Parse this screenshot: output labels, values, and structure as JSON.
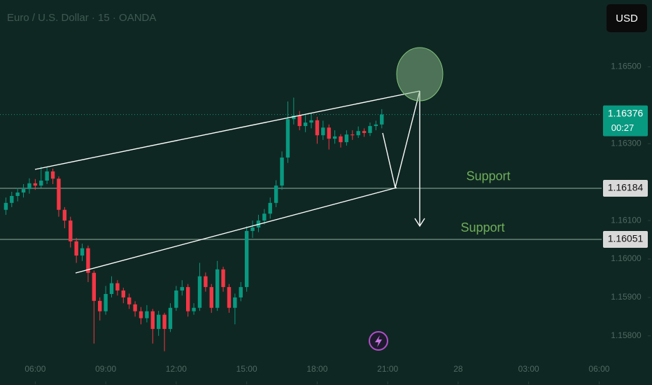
{
  "chart_data": {
    "type": "candlestick",
    "title": "Euro / U.S. Dollar · 15 · OANDA",
    "currency": "USD",
    "countdown": "00:27",
    "up_color": "#089981",
    "down_color": "#f23645",
    "open": [
      1.16128,
      1.16146,
      1.16164,
      1.16173,
      1.16182,
      1.16197,
      1.16191,
      1.16204,
      1.16228,
      1.16209,
      1.16128,
      1.161,
      1.16046,
      1.16009,
      1.16028,
      1.15964,
      1.15891,
      1.15864,
      1.15909,
      1.15937,
      1.15918,
      1.159,
      1.15882,
      1.15864,
      1.15846,
      1.15864,
      1.15818,
      1.15855,
      1.15818,
      1.15873,
      1.15918,
      1.15927,
      1.15864,
      1.15873,
      1.15955,
      1.15927,
      1.15873,
      1.15973,
      1.15927,
      1.15873,
      1.159,
      1.15927,
      1.16073,
      1.16082,
      1.161,
      1.16118,
      1.16146,
      1.16191,
      1.16264,
      1.16364,
      1.16373,
      1.16346,
      1.16355,
      1.16361,
      1.16322,
      1.16342,
      1.16313,
      1.16319,
      1.16304,
      1.16324,
      1.16322,
      1.16333,
      1.16328,
      1.16346,
      1.1635
    ],
    "high": [
      1.1616,
      1.16175,
      1.16185,
      1.16195,
      1.1621,
      1.16208,
      1.1624,
      1.1624,
      1.16235,
      1.16215,
      1.16135,
      1.1611,
      1.16055,
      1.1604,
      1.16035,
      1.1597,
      1.159,
      1.1593,
      1.15955,
      1.15945,
      1.15925,
      1.1591,
      1.1589,
      1.15875,
      1.1588,
      1.1587,
      1.15865,
      1.1586,
      1.15885,
      1.1593,
      1.15945,
      1.15935,
      1.15885,
      1.1599,
      1.15965,
      1.15935,
      1.15995,
      1.1598,
      1.15935,
      1.1591,
      1.1594,
      1.16085,
      1.161,
      1.16115,
      1.1613,
      1.1616,
      1.16205,
      1.1628,
      1.1641,
      1.1642,
      1.16385,
      1.16375,
      1.1638,
      1.1637,
      1.1636,
      1.1635,
      1.16335,
      1.16325,
      1.16335,
      1.16335,
      1.16345,
      1.1634,
      1.16355,
      1.1636,
      1.1639
    ],
    "low": [
      1.16115,
      1.16135,
      1.1615,
      1.1616,
      1.1617,
      1.1618,
      1.16185,
      1.16195,
      1.16195,
      1.1611,
      1.1608,
      1.1603,
      1.1599,
      1.15995,
      1.1594,
      1.1578,
      1.1584,
      1.15855,
      1.159,
      1.15905,
      1.15885,
      1.1587,
      1.1585,
      1.1583,
      1.15835,
      1.1578,
      1.158,
      1.1576,
      1.1581,
      1.15865,
      1.15905,
      1.1585,
      1.15855,
      1.15865,
      1.15915,
      1.1586,
      1.15865,
      1.15915,
      1.1586,
      1.1583,
      1.1589,
      1.15915,
      1.16055,
      1.1607,
      1.1609,
      1.16105,
      1.16135,
      1.1618,
      1.1625,
      1.1635,
      1.16335,
      1.1633,
      1.1634,
      1.163,
      1.1631,
      1.16285,
      1.163,
      1.1629,
      1.16295,
      1.1631,
      1.16315,
      1.16318,
      1.1632,
      1.16335,
      1.1634
    ],
    "close": [
      1.16146,
      1.16164,
      1.16173,
      1.16182,
      1.16197,
      1.16191,
      1.16204,
      1.16228,
      1.16209,
      1.16128,
      1.161,
      1.16046,
      1.16009,
      1.16028,
      1.15964,
      1.15891,
      1.15864,
      1.15909,
      1.15937,
      1.15918,
      1.159,
      1.15882,
      1.15864,
      1.15846,
      1.15864,
      1.15818,
      1.15855,
      1.15818,
      1.15873,
      1.15918,
      1.15927,
      1.15864,
      1.15873,
      1.15955,
      1.15927,
      1.15873,
      1.15973,
      1.15927,
      1.15873,
      1.159,
      1.15927,
      1.16073,
      1.16082,
      1.161,
      1.16118,
      1.16146,
      1.16191,
      1.16264,
      1.16364,
      1.16373,
      1.16346,
      1.16355,
      1.16361,
      1.16322,
      1.16342,
      1.16313,
      1.16319,
      1.16304,
      1.16324,
      1.16322,
      1.16333,
      1.16328,
      1.16346,
      1.1635,
      1.16376
    ],
    "xlim": [
      -1,
      110
    ],
    "xticks": [
      {
        "value": 5,
        "label": "06:00"
      },
      {
        "value": 17,
        "label": "09:00"
      },
      {
        "value": 29,
        "label": "12:00"
      },
      {
        "value": 41,
        "label": "15:00"
      },
      {
        "value": 53,
        "label": "18:00"
      },
      {
        "value": 65,
        "label": "21:00"
      },
      {
        "value": 77,
        "label": "28"
      },
      {
        "value": 89,
        "label": "03:00"
      },
      {
        "value": 101,
        "label": "06:00"
      }
    ],
    "ylim": [
      1.15745,
      1.16674
    ],
    "yticks": [
      {
        "value": 1.165,
        "label": "1.16500"
      },
      {
        "value": 1.163,
        "label": "1.16300"
      },
      {
        "value": 1.161,
        "label": "1.16100"
      },
      {
        "value": 1.16,
        "label": "1.16000"
      },
      {
        "value": 1.159,
        "label": "1.15900"
      },
      {
        "value": 1.158,
        "label": "1.15800"
      }
    ],
    "hlines": [
      {
        "value": 1.16184,
        "label": "Support"
      },
      {
        "value": 1.16051,
        "label": "Support"
      }
    ]
  }
}
